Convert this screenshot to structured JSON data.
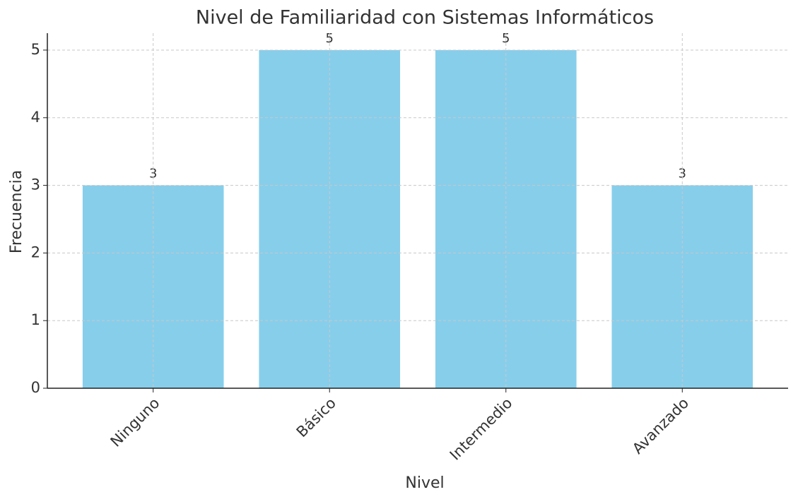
{
  "chart_data": {
    "type": "bar",
    "title": "Nivel de Familiaridad con Sistemas Informáticos",
    "x_label": "Nivel",
    "y_label": "Frecuencia",
    "categories": [
      "Ninguno",
      "Básico",
      "Intermedio",
      "Avanzado"
    ],
    "values": [
      3,
      5,
      5,
      3
    ],
    "color": "#87ceeb",
    "ylim": [
      0,
      5.25
    ],
    "yticks": [
      0,
      1,
      2,
      3,
      4,
      5
    ],
    "grid": true,
    "data_labels": true
  }
}
